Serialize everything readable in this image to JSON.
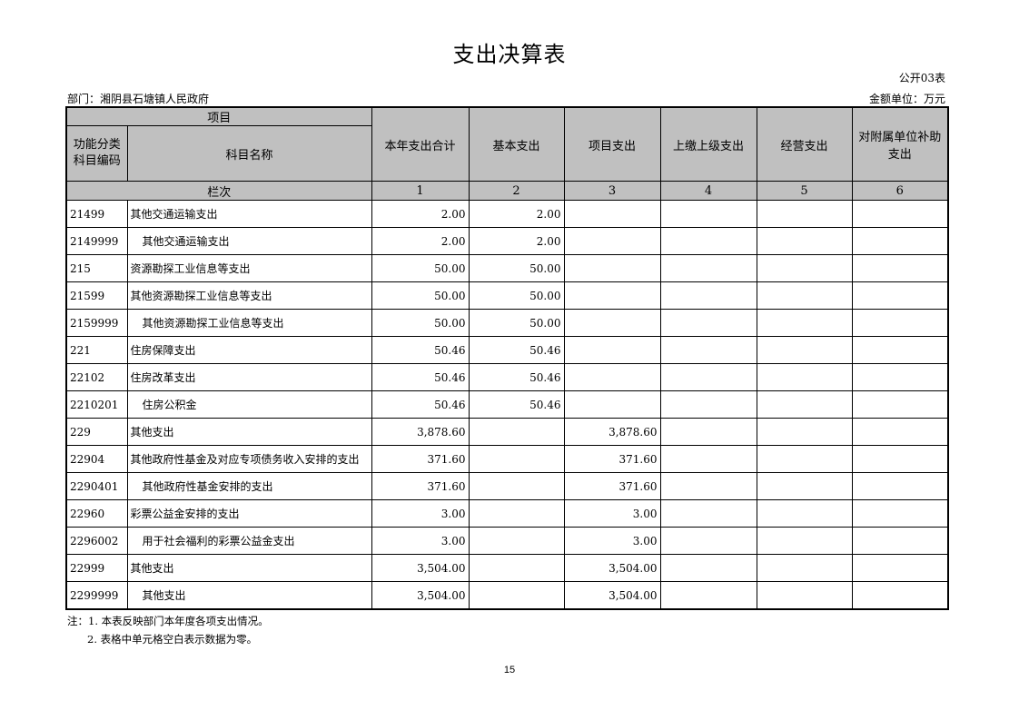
{
  "title": "支出决算表",
  "table_code": "公开03表",
  "department": "部门：湘阴县石塘镇人民政府",
  "unit": "金额单位：万元",
  "headers": {
    "project": "项目",
    "code": "功能分类科目编码",
    "name": "科目名称",
    "total": "本年支出合计",
    "basic": "基本支出",
    "project_exp": "项目支出",
    "upper": "上缴上级支出",
    "business": "经营支出",
    "subsidy": "对附属单位补助支出",
    "row_label": "栏次",
    "col_nums": [
      "1",
      "2",
      "3",
      "4",
      "5",
      "6"
    ]
  },
  "rows": [
    {
      "code": "21499",
      "name": "其他交通运输支出",
      "indent": false,
      "total": "2.00",
      "basic": "2.00",
      "project": "",
      "upper": "",
      "business": "",
      "subsidy": ""
    },
    {
      "code": "2149999",
      "name": "其他交通运输支出",
      "indent": true,
      "total": "2.00",
      "basic": "2.00",
      "project": "",
      "upper": "",
      "business": "",
      "subsidy": ""
    },
    {
      "code": "215",
      "name": "资源勘探工业信息等支出",
      "indent": false,
      "total": "50.00",
      "basic": "50.00",
      "project": "",
      "upper": "",
      "business": "",
      "subsidy": ""
    },
    {
      "code": "21599",
      "name": "其他资源勘探工业信息等支出",
      "indent": false,
      "total": "50.00",
      "basic": "50.00",
      "project": "",
      "upper": "",
      "business": "",
      "subsidy": ""
    },
    {
      "code": "2159999",
      "name": "其他资源勘探工业信息等支出",
      "indent": true,
      "total": "50.00",
      "basic": "50.00",
      "project": "",
      "upper": "",
      "business": "",
      "subsidy": ""
    },
    {
      "code": "221",
      "name": "住房保障支出",
      "indent": false,
      "total": "50.46",
      "basic": "50.46",
      "project": "",
      "upper": "",
      "business": "",
      "subsidy": ""
    },
    {
      "code": "22102",
      "name": "住房改革支出",
      "indent": false,
      "total": "50.46",
      "basic": "50.46",
      "project": "",
      "upper": "",
      "business": "",
      "subsidy": ""
    },
    {
      "code": "2210201",
      "name": "住房公积金",
      "indent": true,
      "total": "50.46",
      "basic": "50.46",
      "project": "",
      "upper": "",
      "business": "",
      "subsidy": ""
    },
    {
      "code": "229",
      "name": "其他支出",
      "indent": false,
      "total": "3,878.60",
      "basic": "",
      "project": "3,878.60",
      "upper": "",
      "business": "",
      "subsidy": ""
    },
    {
      "code": "22904",
      "name": "其他政府性基金及对应专项债务收入安排的支出",
      "indent": false,
      "total": "371.60",
      "basic": "",
      "project": "371.60",
      "upper": "",
      "business": "",
      "subsidy": ""
    },
    {
      "code": "2290401",
      "name": "其他政府性基金安排的支出",
      "indent": true,
      "total": "371.60",
      "basic": "",
      "project": "371.60",
      "upper": "",
      "business": "",
      "subsidy": ""
    },
    {
      "code": "22960",
      "name": "彩票公益金安排的支出",
      "indent": false,
      "total": "3.00",
      "basic": "",
      "project": "3.00",
      "upper": "",
      "business": "",
      "subsidy": ""
    },
    {
      "code": "2296002",
      "name": "用于社会福利的彩票公益金支出",
      "indent": true,
      "total": "3.00",
      "basic": "",
      "project": "3.00",
      "upper": "",
      "business": "",
      "subsidy": ""
    },
    {
      "code": "22999",
      "name": "其他支出",
      "indent": false,
      "total": "3,504.00",
      "basic": "",
      "project": "3,504.00",
      "upper": "",
      "business": "",
      "subsidy": ""
    },
    {
      "code": "2299999",
      "name": "其他支出",
      "indent": true,
      "total": "3,504.00",
      "basic": "",
      "project": "3,504.00",
      "upper": "",
      "business": "",
      "subsidy": ""
    }
  ],
  "notes": [
    "注：1. 本表反映部门本年度各项支出情况。",
    "2. 表格中单元格空白表示数据为零。"
  ],
  "page_number": "15"
}
